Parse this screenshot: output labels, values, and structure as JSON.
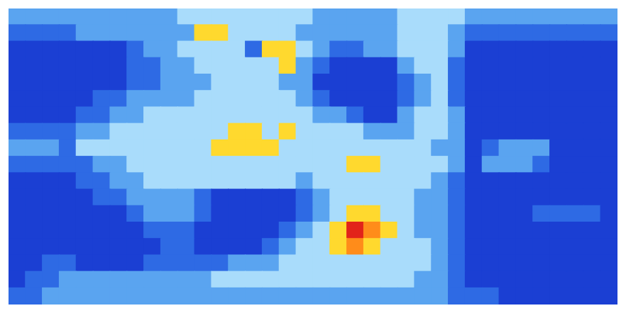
{
  "chart_data": {
    "type": "heatmap",
    "tick_labels": false,
    "grid": false,
    "zlim": [
      0,
      6
    ],
    "colorscale": [
      "#1b3fd3",
      "#2e6ae4",
      "#5aa4f0",
      "#a9dcfb",
      "#ffd92e",
      "#ff8c1a",
      "#e2231a"
    ],
    "cells": [
      [
        2,
        2,
        2,
        2,
        2,
        2,
        2,
        2,
        2,
        2,
        3,
        3,
        3,
        3,
        3,
        3,
        3,
        3,
        2,
        2,
        2,
        2,
        2,
        3,
        3,
        3,
        3,
        2,
        2,
        2,
        2,
        2,
        2,
        2,
        2,
        2
      ],
      [
        1,
        1,
        1,
        1,
        2,
        2,
        2,
        2,
        2,
        2,
        2,
        4,
        4,
        3,
        3,
        3,
        3,
        2,
        2,
        2,
        2,
        2,
        2,
        3,
        3,
        3,
        2,
        1,
        1,
        1,
        1,
        1,
        1,
        1,
        1,
        1
      ],
      [
        0,
        0,
        0,
        0,
        0,
        0,
        0,
        1,
        2,
        2,
        3,
        3,
        3,
        3,
        1,
        4,
        4,
        3,
        2,
        1,
        1,
        2,
        2,
        3,
        3,
        3,
        2,
        0,
        0,
        0,
        0,
        0,
        0,
        0,
        0,
        0
      ],
      [
        0,
        0,
        0,
        0,
        0,
        0,
        0,
        1,
        1,
        2,
        2,
        3,
        3,
        3,
        3,
        3,
        4,
        2,
        1,
        0,
        0,
        0,
        0,
        2,
        3,
        3,
        1,
        0,
        0,
        0,
        0,
        0,
        0,
        0,
        0,
        0
      ],
      [
        0,
        0,
        0,
        0,
        0,
        0,
        0,
        1,
        1,
        2,
        2,
        2,
        3,
        3,
        3,
        3,
        2,
        2,
        0,
        0,
        0,
        0,
        0,
        1,
        2,
        3,
        1,
        0,
        0,
        0,
        0,
        0,
        0,
        0,
        0,
        0
      ],
      [
        0,
        0,
        0,
        0,
        0,
        1,
        1,
        2,
        2,
        2,
        2,
        3,
        3,
        3,
        3,
        3,
        3,
        2,
        1,
        0,
        0,
        0,
        0,
        1,
        2,
        3,
        1,
        0,
        0,
        0,
        0,
        0,
        0,
        0,
        0,
        0
      ],
      [
        0,
        0,
        0,
        0,
        1,
        1,
        2,
        2,
        3,
        3,
        3,
        3,
        3,
        3,
        3,
        3,
        3,
        3,
        2,
        2,
        1,
        0,
        0,
        2,
        3,
        3,
        2,
        0,
        0,
        0,
        0,
        0,
        0,
        0,
        0,
        0
      ],
      [
        1,
        1,
        1,
        1,
        2,
        2,
        3,
        3,
        3,
        3,
        3,
        3,
        3,
        4,
        4,
        3,
        4,
        3,
        3,
        3,
        3,
        2,
        2,
        2,
        3,
        3,
        2,
        0,
        0,
        0,
        0,
        0,
        0,
        0,
        0,
        0
      ],
      [
        2,
        2,
        2,
        1,
        3,
        3,
        3,
        3,
        3,
        3,
        3,
        3,
        4,
        4,
        4,
        4,
        3,
        3,
        3,
        3,
        3,
        3,
        3,
        3,
        3,
        2,
        2,
        0,
        1,
        2,
        2,
        2,
        0,
        0,
        0,
        0
      ],
      [
        1,
        1,
        1,
        1,
        1,
        2,
        2,
        3,
        3,
        3,
        3,
        3,
        3,
        3,
        3,
        3,
        3,
        3,
        3,
        3,
        4,
        4,
        3,
        3,
        3,
        3,
        2,
        0,
        2,
        2,
        2,
        1,
        0,
        0,
        0,
        0
      ],
      [
        0,
        0,
        0,
        0,
        1,
        1,
        2,
        2,
        3,
        3,
        3,
        3,
        3,
        3,
        3,
        3,
        3,
        2,
        3,
        3,
        3,
        3,
        3,
        3,
        3,
        2,
        1,
        0,
        0,
        0,
        0,
        0,
        0,
        0,
        0,
        0
      ],
      [
        0,
        0,
        0,
        0,
        0,
        1,
        1,
        2,
        2,
        2,
        2,
        1,
        0,
        0,
        0,
        0,
        0,
        1,
        2,
        3,
        3,
        3,
        3,
        3,
        2,
        2,
        1,
        0,
        0,
        0,
        0,
        0,
        0,
        0,
        0,
        0
      ],
      [
        0,
        0,
        0,
        0,
        0,
        0,
        0,
        1,
        2,
        2,
        2,
        1,
        0,
        0,
        0,
        0,
        0,
        1,
        2,
        3,
        4,
        4,
        3,
        3,
        2,
        2,
        1,
        0,
        0,
        0,
        0,
        1,
        1,
        1,
        1,
        0
      ],
      [
        0,
        0,
        0,
        0,
        0,
        0,
        0,
        0,
        1,
        1,
        1,
        0,
        0,
        0,
        0,
        0,
        1,
        2,
        3,
        4,
        6,
        5,
        4,
        3,
        2,
        2,
        1,
        0,
        0,
        0,
        0,
        0,
        0,
        0,
        0,
        0
      ],
      [
        0,
        0,
        0,
        0,
        0,
        0,
        0,
        0,
        0,
        1,
        1,
        0,
        0,
        0,
        0,
        1,
        2,
        3,
        3,
        4,
        5,
        4,
        3,
        3,
        3,
        2,
        1,
        0,
        0,
        0,
        0,
        0,
        0,
        0,
        0,
        0
      ],
      [
        0,
        0,
        1,
        1,
        0,
        0,
        0,
        0,
        1,
        1,
        1,
        1,
        1,
        2,
        2,
        2,
        3,
        3,
        3,
        3,
        3,
        3,
        3,
        3,
        3,
        2,
        1,
        0,
        0,
        0,
        0,
        0,
        0,
        0,
        0,
        0
      ],
      [
        0,
        1,
        1,
        2,
        2,
        2,
        2,
        2,
        2,
        2,
        2,
        2,
        3,
        3,
        3,
        3,
        3,
        3,
        3,
        3,
        3,
        3,
        3,
        3,
        2,
        2,
        1,
        0,
        0,
        0,
        0,
        0,
        0,
        0,
        0,
        0
      ],
      [
        1,
        1,
        2,
        2,
        2,
        2,
        2,
        2,
        2,
        2,
        2,
        2,
        2,
        2,
        2,
        2,
        2,
        2,
        2,
        2,
        2,
        2,
        2,
        2,
        2,
        2,
        1,
        1,
        1,
        0,
        0,
        0,
        0,
        0,
        0,
        0
      ]
    ]
  }
}
